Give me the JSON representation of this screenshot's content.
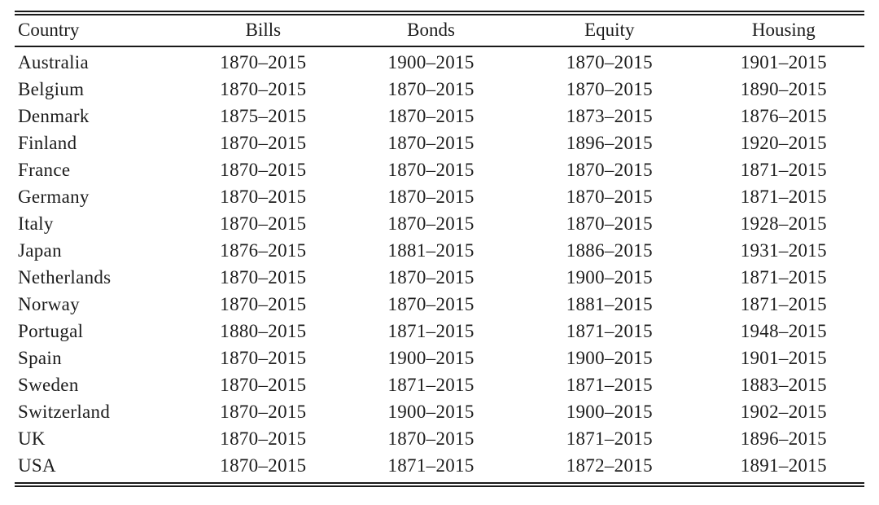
{
  "table": {
    "columns": [
      {
        "key": "country",
        "label": "Country"
      },
      {
        "key": "bills",
        "label": "Bills"
      },
      {
        "key": "bonds",
        "label": "Bonds"
      },
      {
        "key": "equity",
        "label": "Equity"
      },
      {
        "key": "housing",
        "label": "Housing"
      }
    ],
    "rows": [
      {
        "country": "Australia",
        "bills": "1870–2015",
        "bonds": "1900–2015",
        "equity": "1870–2015",
        "housing": "1901–2015"
      },
      {
        "country": "Belgium",
        "bills": "1870–2015",
        "bonds": "1870–2015",
        "equity": "1870–2015",
        "housing": "1890–2015"
      },
      {
        "country": "Denmark",
        "bills": "1875–2015",
        "bonds": "1870–2015",
        "equity": "1873–2015",
        "housing": "1876–2015"
      },
      {
        "country": "Finland",
        "bills": "1870–2015",
        "bonds": "1870–2015",
        "equity": "1896–2015",
        "housing": "1920–2015"
      },
      {
        "country": "France",
        "bills": "1870–2015",
        "bonds": "1870–2015",
        "equity": "1870–2015",
        "housing": "1871–2015"
      },
      {
        "country": "Germany",
        "bills": "1870–2015",
        "bonds": "1870–2015",
        "equity": "1870–2015",
        "housing": "1871–2015"
      },
      {
        "country": "Italy",
        "bills": "1870–2015",
        "bonds": "1870–2015",
        "equity": "1870–2015",
        "housing": "1928–2015"
      },
      {
        "country": "Japan",
        "bills": "1876–2015",
        "bonds": "1881–2015",
        "equity": "1886–2015",
        "housing": "1931–2015"
      },
      {
        "country": "Netherlands",
        "bills": "1870–2015",
        "bonds": "1870–2015",
        "equity": "1900–2015",
        "housing": "1871–2015"
      },
      {
        "country": "Norway",
        "bills": "1870–2015",
        "bonds": "1870–2015",
        "equity": "1881–2015",
        "housing": "1871–2015"
      },
      {
        "country": "Portugal",
        "bills": "1880–2015",
        "bonds": "1871–2015",
        "equity": "1871–2015",
        "housing": "1948–2015"
      },
      {
        "country": "Spain",
        "bills": "1870–2015",
        "bonds": "1900–2015",
        "equity": "1900–2015",
        "housing": "1901–2015"
      },
      {
        "country": "Sweden",
        "bills": "1870–2015",
        "bonds": "1871–2015",
        "equity": "1871–2015",
        "housing": "1883–2015"
      },
      {
        "country": "Switzerland",
        "bills": "1870–2015",
        "bonds": "1900–2015",
        "equity": "1900–2015",
        "housing": "1902–2015"
      },
      {
        "country": "UK",
        "bills": "1870–2015",
        "bonds": "1870–2015",
        "equity": "1871–2015",
        "housing": "1896–2015"
      },
      {
        "country": "USA",
        "bills": "1870–2015",
        "bonds": "1871–2015",
        "equity": "1872–2015",
        "housing": "1891–2015"
      }
    ]
  }
}
